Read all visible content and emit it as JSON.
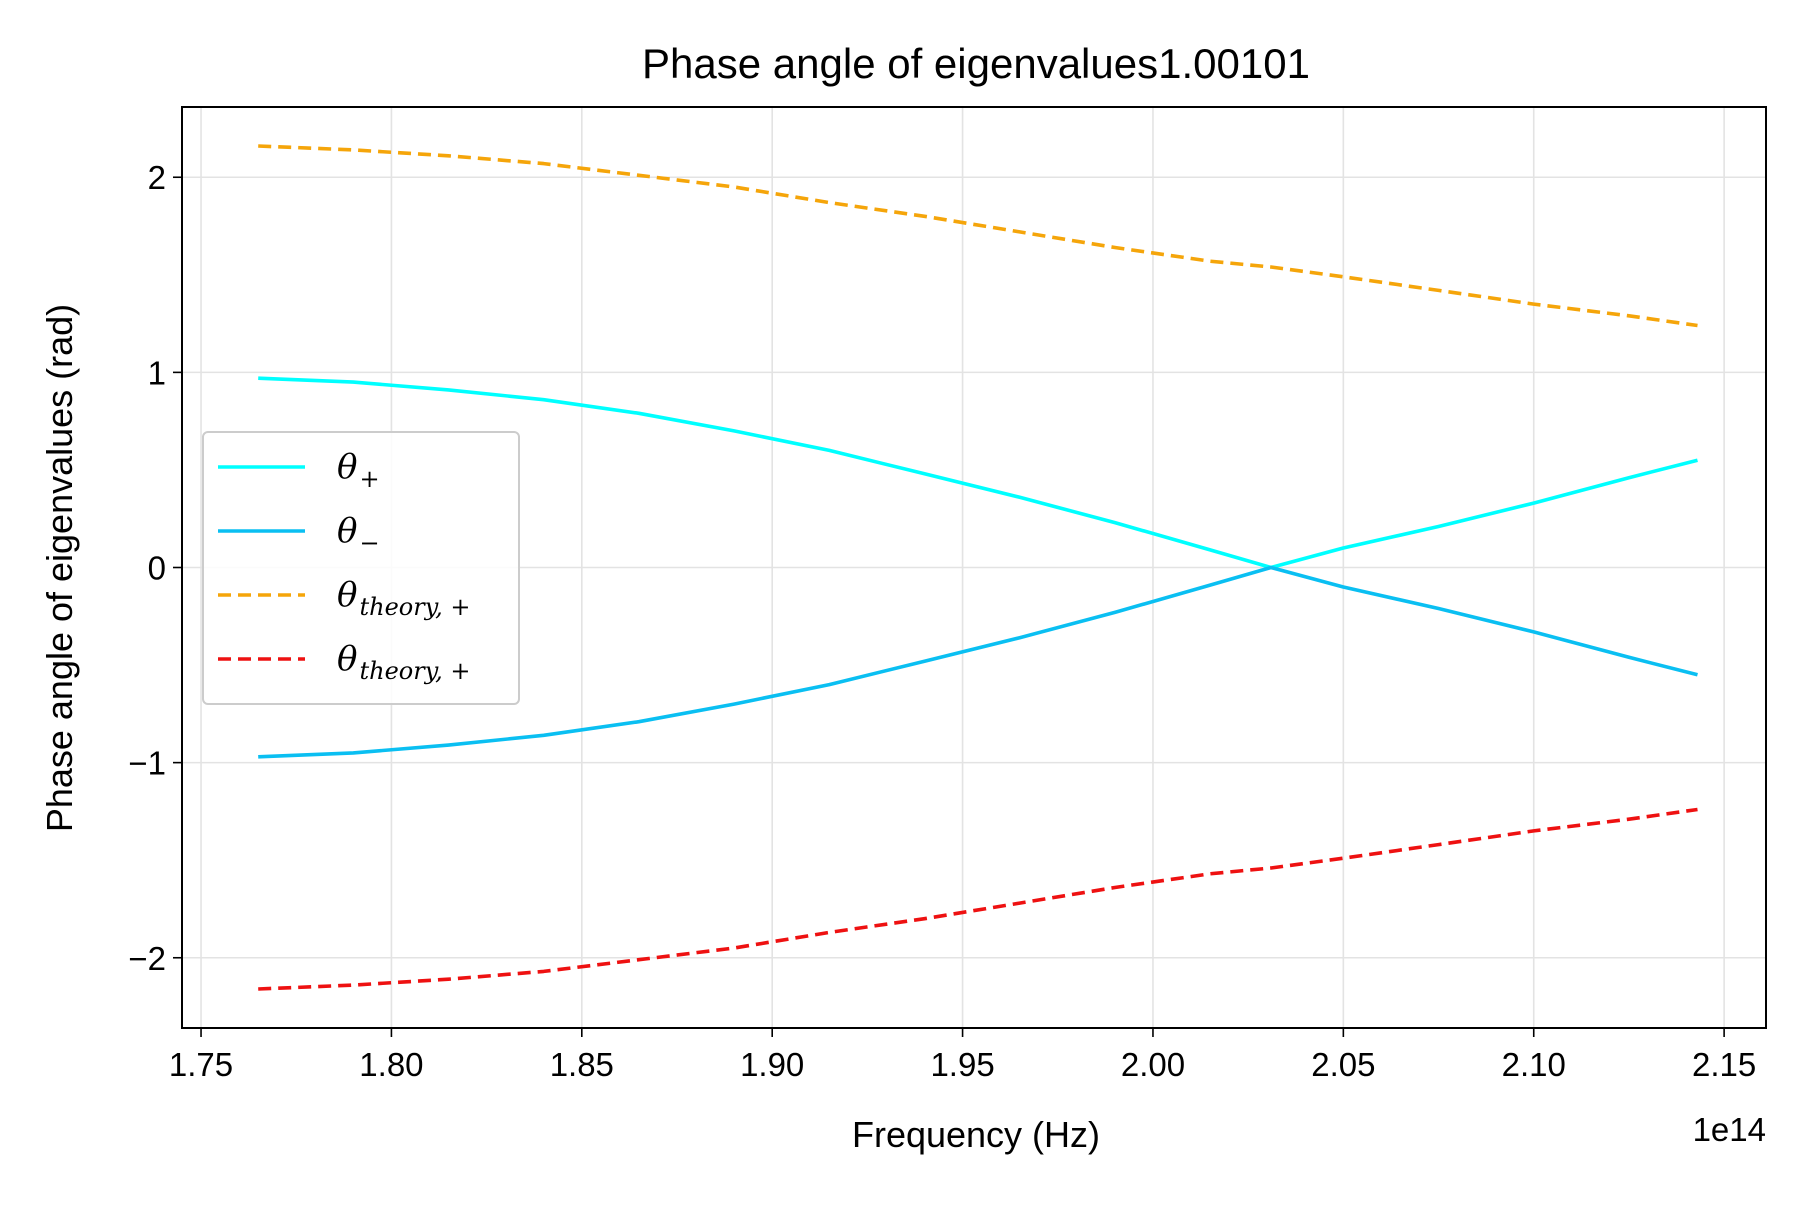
{
  "chart_data": {
    "type": "line",
    "title": "Phase angle of eigenvalues1.00101",
    "xlabel": "Frequency (Hz)",
    "ylabel": "Phase angle of eigenvalues (rad)",
    "x_offset_label": "1e14",
    "xlim": [
      1.745,
      2.161
    ],
    "ylim": [
      -2.36,
      2.36
    ],
    "x_ticks": [
      1.75,
      1.8,
      1.85,
      1.9,
      1.95,
      2.0,
      2.05,
      2.1,
      2.15
    ],
    "x_tick_labels": [
      "1.75",
      "1.80",
      "1.85",
      "1.90",
      "1.95",
      "2.00",
      "2.05",
      "2.10",
      "2.15"
    ],
    "y_ticks": [
      -2,
      -1,
      0,
      1,
      2
    ],
    "y_tick_labels": [
      "−2",
      "−1",
      "0",
      "1",
      "2"
    ],
    "grid": true,
    "legend_position": "center-left",
    "x": [
      1.765,
      1.79,
      1.815,
      1.84,
      1.865,
      1.89,
      1.915,
      1.94,
      1.965,
      1.99,
      2.015,
      2.031,
      2.05,
      2.075,
      2.1,
      2.125,
      2.143
    ],
    "series": [
      {
        "name": "θ+",
        "legend_main": "θ",
        "legend_sub": "+",
        "color": "#00ffff",
        "style": "solid",
        "values": [
          0.97,
          0.95,
          0.91,
          0.86,
          0.79,
          0.7,
          0.6,
          0.48,
          0.36,
          0.23,
          0.09,
          0.0,
          0.1,
          0.21,
          0.33,
          0.46,
          0.55
        ]
      },
      {
        "name": "θ−",
        "legend_main": "θ",
        "legend_sub": "−",
        "color": "#0abff2",
        "style": "solid",
        "values": [
          -0.97,
          -0.95,
          -0.91,
          -0.86,
          -0.79,
          -0.7,
          -0.6,
          -0.48,
          -0.36,
          -0.23,
          -0.09,
          0.0,
          -0.1,
          -0.21,
          -0.33,
          -0.46,
          -0.55
        ]
      },
      {
        "name": "θtheory, +",
        "legend_main": "θ",
        "legend_sub": "theory, +",
        "color": "#f5a50a",
        "style": "dashed",
        "values": [
          2.16,
          2.14,
          2.11,
          2.07,
          2.01,
          1.95,
          1.87,
          1.8,
          1.72,
          1.64,
          1.57,
          1.54,
          1.49,
          1.42,
          1.35,
          1.29,
          1.24
        ]
      },
      {
        "name": "θtheory, +",
        "legend_main": "θ",
        "legend_sub": "theory, +",
        "color": "#ee1111",
        "style": "dashed",
        "values": [
          -2.16,
          -2.14,
          -2.11,
          -2.07,
          -2.01,
          -1.95,
          -1.87,
          -1.8,
          -1.72,
          -1.64,
          -1.57,
          -1.54,
          -1.49,
          -1.42,
          -1.35,
          -1.29,
          -1.24
        ]
      }
    ]
  }
}
